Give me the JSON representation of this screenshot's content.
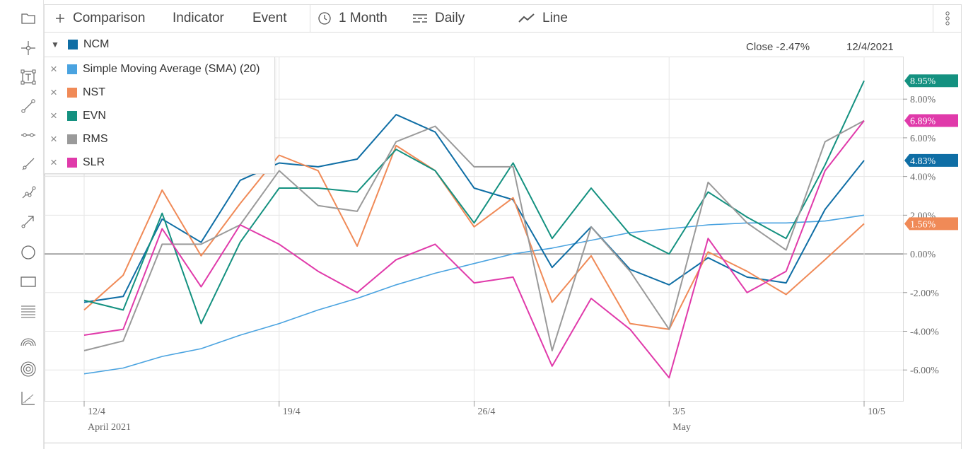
{
  "toolbar": {
    "comparison_label": "Comparison",
    "indicator_label": "Indicator",
    "event_label": "Event",
    "range_label": "1 Month",
    "interval_label": "Daily",
    "type_label": "Line"
  },
  "left_tools": [
    "folder-icon",
    "crosshair-icon",
    "text-box-icon",
    "trend-line-icon",
    "horizontal-ray-icon",
    "line-segment-icon",
    "dotted-path-icon",
    "arrow-icon",
    "circle-icon",
    "rectangle-icon",
    "fibonacci-lines-icon",
    "arc-icon",
    "concentric-circles-icon",
    "measure-icon"
  ],
  "legend": {
    "main": {
      "name": "NCM",
      "color": "#0f6ea5"
    },
    "items": [
      {
        "name": "Simple Moving Average (SMA) (20)",
        "color": "#4aa3e0"
      },
      {
        "name": "NST",
        "color": "#f08a57"
      },
      {
        "name": "EVN",
        "color": "#149180"
      },
      {
        "name": "RMS",
        "color": "#9a9a9a"
      },
      {
        "name": "SLR",
        "color": "#e03aaa"
      }
    ]
  },
  "readout": {
    "close": "Close -2.47%",
    "date": "12/4/2021"
  },
  "chart_data": {
    "type": "line",
    "x": [
      "12/4",
      "13/4",
      "14/4",
      "15/4",
      "16/4",
      "19/4",
      "20/4",
      "21/4",
      "22/4",
      "23/4",
      "26/4",
      "27/4",
      "28/4",
      "29/4",
      "30/4",
      "3/5",
      "4/5",
      "5/5",
      "6/5",
      "7/5",
      "10/5"
    ],
    "x_tick_labels": [
      {
        "label": "12/4",
        "sub": "April 2021",
        "index": 0
      },
      {
        "label": "19/4",
        "sub": "",
        "index": 5
      },
      {
        "label": "26/4",
        "sub": "",
        "index": 10
      },
      {
        "label": "3/5",
        "sub": "May",
        "index": 15
      },
      {
        "label": "10/5",
        "sub": "",
        "index": 20
      }
    ],
    "y_ticks": [
      "-6.00%",
      "-4.00%",
      "-2.00%",
      "0.00%",
      "2.00%",
      "4.00%",
      "6.00%",
      "8.00%"
    ],
    "y_tick_values": [
      -6,
      -4,
      -2,
      0,
      2,
      4,
      6,
      8
    ],
    "ylim": [
      -7.6,
      10.2
    ],
    "grid": true,
    "series": [
      {
        "name": "Simple Moving Average (SMA) (20)",
        "color": "#4aa3e0",
        "values": [
          -6.2,
          -5.9,
          -5.3,
          -4.9,
          -4.2,
          -3.6,
          -2.9,
          -2.3,
          -1.6,
          -1.0,
          -0.5,
          0.0,
          0.3,
          0.7,
          1.1,
          1.3,
          1.5,
          1.6,
          1.6,
          1.7,
          2.0
        ],
        "end_label": ""
      },
      {
        "name": "NCM",
        "color": "#0f6ea5",
        "values": [
          -2.5,
          -2.2,
          1.8,
          0.6,
          3.8,
          4.7,
          4.5,
          4.9,
          7.2,
          6.3,
          3.4,
          2.8,
          -0.7,
          1.4,
          -0.8,
          -1.6,
          -0.2,
          -1.2,
          -1.5,
          2.3,
          4.83
        ],
        "end_label": "4.83%"
      },
      {
        "name": "NST",
        "color": "#f08a57",
        "values": [
          -2.9,
          -1.1,
          3.3,
          -0.1,
          2.6,
          5.1,
          4.3,
          0.4,
          5.6,
          4.3,
          1.4,
          2.9,
          -2.5,
          -0.1,
          -3.6,
          -3.9,
          0.1,
          -0.9,
          -2.1,
          -0.3,
          1.56
        ],
        "end_label": "1.56%"
      },
      {
        "name": "EVN",
        "color": "#149180",
        "values": [
          -2.4,
          -2.9,
          2.1,
          -3.6,
          0.6,
          3.4,
          3.4,
          3.2,
          5.4,
          4.3,
          1.6,
          4.7,
          0.8,
          3.4,
          1.0,
          0.0,
          3.2,
          1.9,
          0.8,
          4.6,
          8.95
        ],
        "end_label": "8.95%"
      },
      {
        "name": "RMS",
        "color": "#9a9a9a",
        "values": [
          -5.0,
          -4.5,
          0.5,
          0.5,
          1.5,
          4.3,
          2.5,
          2.2,
          5.8,
          6.6,
          4.5,
          4.5,
          -5.0,
          1.4,
          -0.9,
          -3.9,
          3.7,
          1.6,
          0.2,
          5.8,
          6.89
        ],
        "end_label": ""
      },
      {
        "name": "SLR",
        "color": "#e03aaa",
        "values": [
          -4.2,
          -3.9,
          1.3,
          -1.7,
          1.5,
          0.5,
          -0.9,
          -2.0,
          -0.3,
          0.5,
          -1.5,
          -1.2,
          -5.8,
          -2.3,
          -3.9,
          -6.4,
          0.8,
          -2.0,
          -0.9,
          4.3,
          6.89
        ],
        "end_label": "6.89%"
      }
    ]
  }
}
